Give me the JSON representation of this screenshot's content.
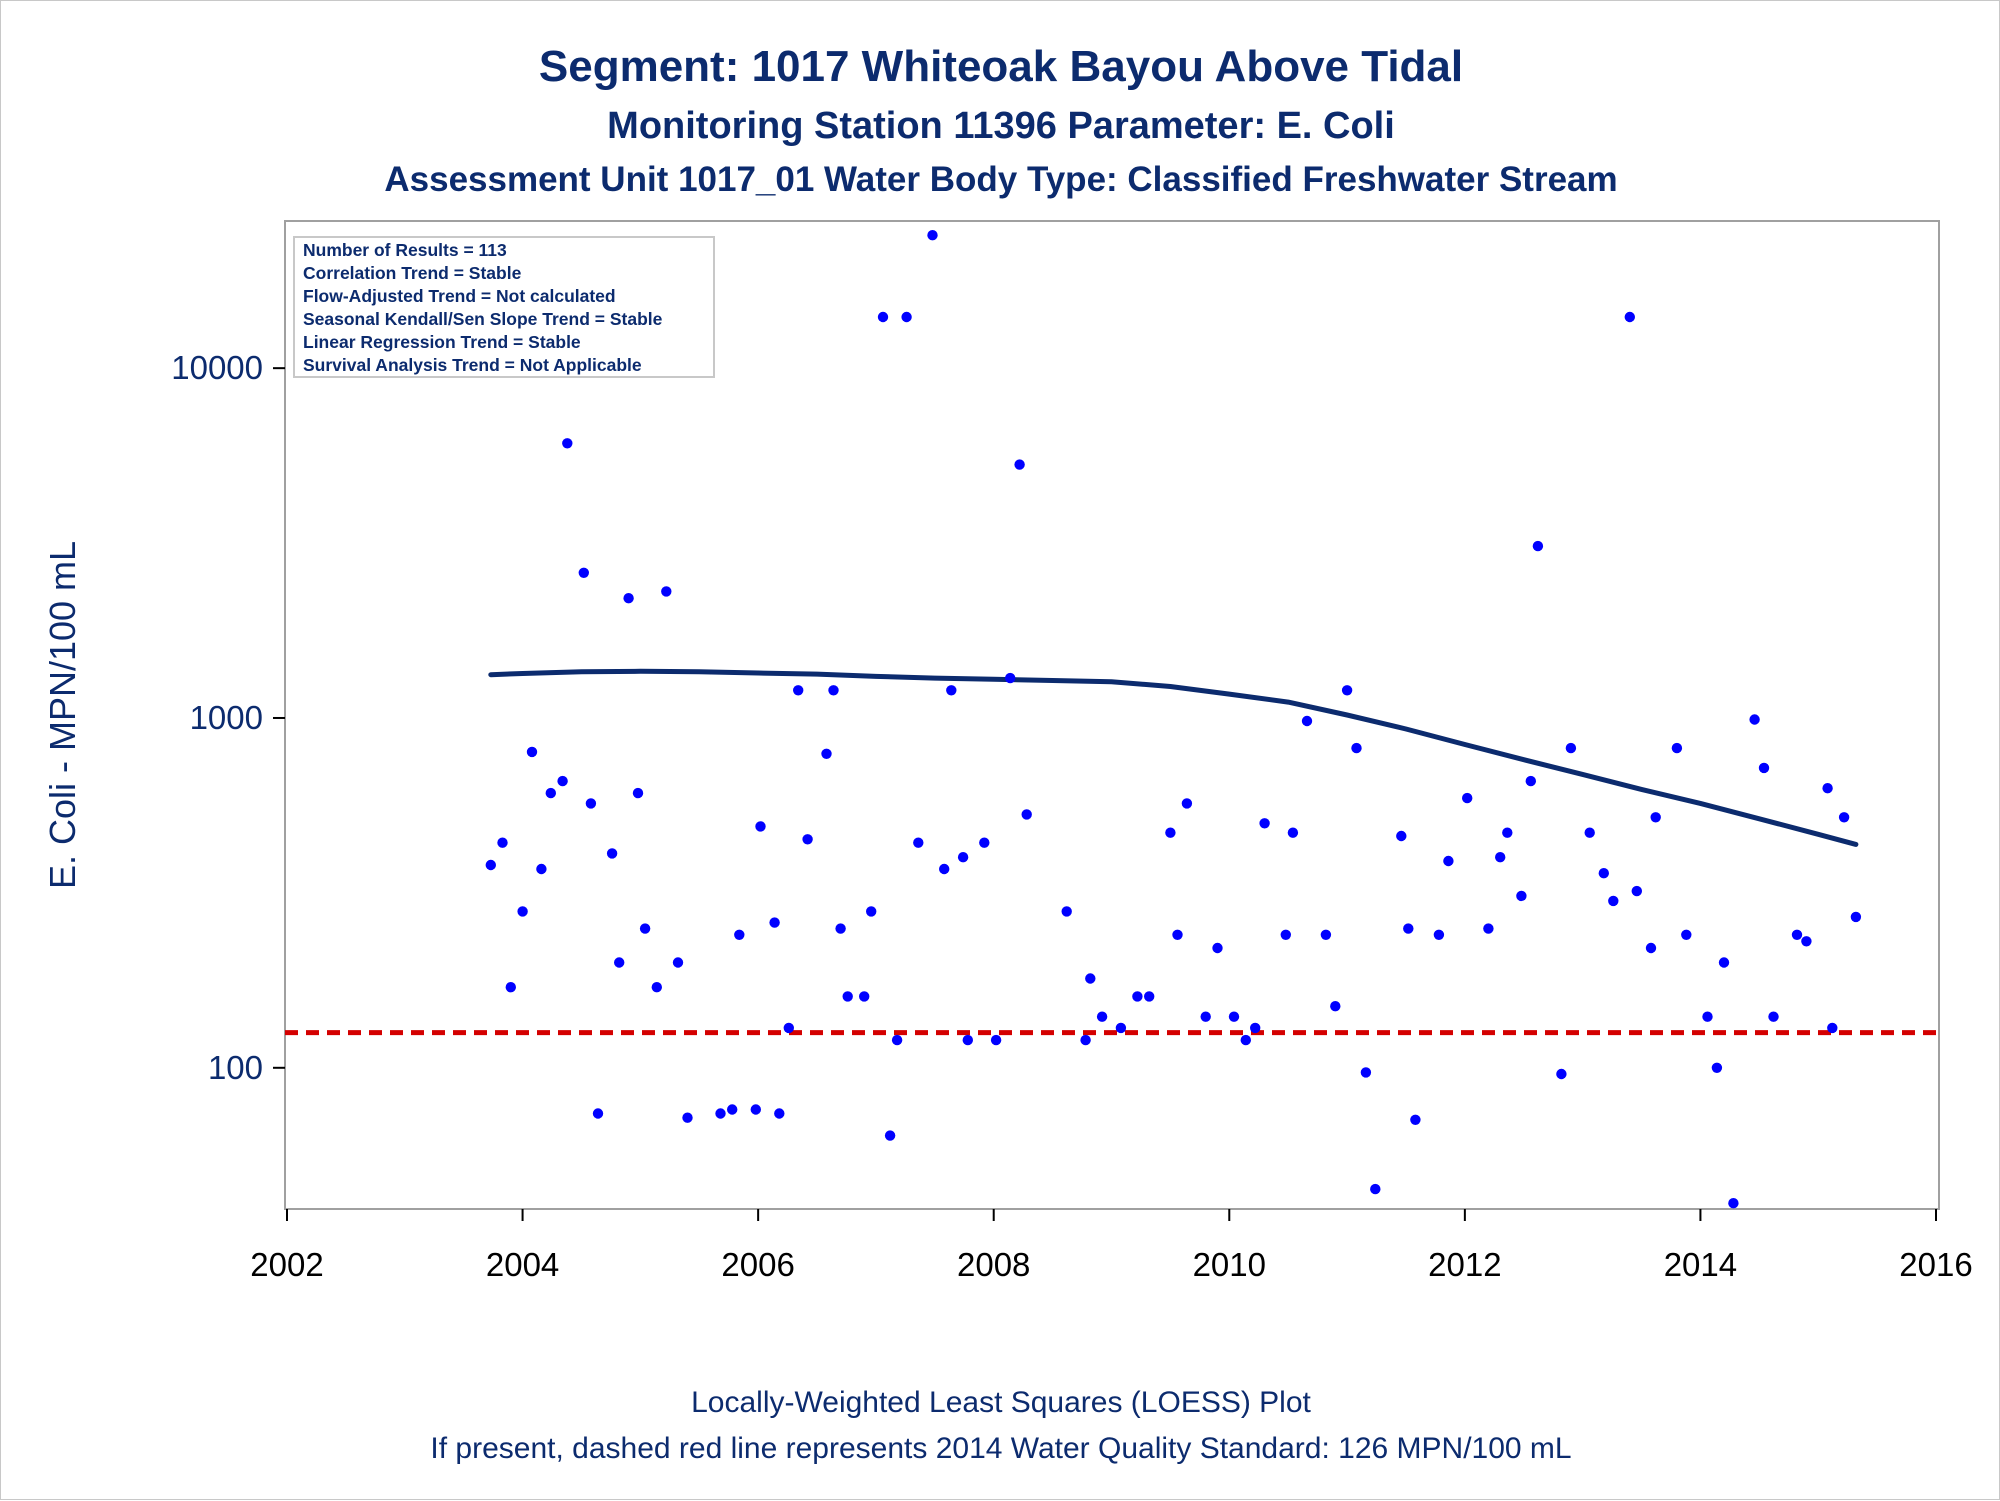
{
  "titles": {
    "line1": "Segment: 1017  Whiteoak Bayou Above Tidal",
    "line2": "Monitoring Station 11396 Parameter: E. Coli",
    "line3": "Assessment Unit 1017_01   Water Body Type: Classified Freshwater Stream"
  },
  "stats_box": [
    "Number of Results = 113",
    "Correlation Trend = Stable",
    "Flow-Adjusted Trend = Not calculated",
    "Seasonal Kendall/Sen Slope Trend = Stable",
    "Linear Regression Trend = Stable",
    "Survival Analysis Trend = Not Applicable"
  ],
  "footnotes": {
    "line1": "Locally-Weighted Least Squares (LOESS) Plot",
    "line2": "If present, dashed red line represents 2014 Water Quality Standard: 126 MPN/100 mL"
  },
  "colors": {
    "title": "#0c2b6e",
    "points": "#0000ff",
    "loess": "#0c2b6e",
    "standard_line": "#d40000",
    "axis_frame": "#a0a0a0"
  },
  "chart_data": {
    "type": "scatter",
    "ylabel": "E. Coli - MPN/100 mL",
    "xlabel": "",
    "yscale": "log",
    "xlim": [
      2002,
      2016
    ],
    "ylim": [
      40,
      26000
    ],
    "xticks": [
      2002,
      2004,
      2006,
      2008,
      2010,
      2012,
      2014,
      2016
    ],
    "yticks": [
      100,
      1000,
      10000
    ],
    "grid": false,
    "standard_line": {
      "value": 126,
      "style": "dashed",
      "color": "#d40000"
    },
    "points": [
      [
        2003.73,
        380
      ],
      [
        2003.83,
        440
      ],
      [
        2003.9,
        170
      ],
      [
        2004.0,
        280
      ],
      [
        2004.08,
        800
      ],
      [
        2004.16,
        370
      ],
      [
        2004.24,
        610
      ],
      [
        2004.34,
        660
      ],
      [
        2004.38,
        6100
      ],
      [
        2004.52,
        2600
      ],
      [
        2004.58,
        570
      ],
      [
        2004.64,
        74
      ],
      [
        2004.76,
        410
      ],
      [
        2004.82,
        200
      ],
      [
        2004.9,
        2200
      ],
      [
        2004.98,
        610
      ],
      [
        2005.04,
        250
      ],
      [
        2005.14,
        170
      ],
      [
        2005.22,
        2300
      ],
      [
        2005.32,
        200
      ],
      [
        2005.4,
        72
      ],
      [
        2005.68,
        74
      ],
      [
        2005.78,
        76
      ],
      [
        2005.84,
        240
      ],
      [
        2005.98,
        76
      ],
      [
        2006.02,
        490
      ],
      [
        2006.14,
        260
      ],
      [
        2006.18,
        74
      ],
      [
        2006.26,
        130
      ],
      [
        2006.34,
        1200
      ],
      [
        2006.42,
        450
      ],
      [
        2006.58,
        790
      ],
      [
        2006.64,
        1200
      ],
      [
        2006.7,
        250
      ],
      [
        2006.76,
        160
      ],
      [
        2006.9,
        160
      ],
      [
        2006.96,
        280
      ],
      [
        2007.06,
        14000
      ],
      [
        2007.12,
        64
      ],
      [
        2007.18,
        120
      ],
      [
        2007.26,
        14000
      ],
      [
        2007.36,
        440
      ],
      [
        2007.48,
        24000
      ],
      [
        2007.58,
        370
      ],
      [
        2007.64,
        1200
      ],
      [
        2007.74,
        400
      ],
      [
        2007.78,
        120
      ],
      [
        2007.92,
        440
      ],
      [
        2008.02,
        120
      ],
      [
        2008.14,
        1300
      ],
      [
        2008.22,
        5300
      ],
      [
        2008.28,
        530
      ],
      [
        2008.62,
        280
      ],
      [
        2008.78,
        120
      ],
      [
        2008.82,
        180
      ],
      [
        2008.92,
        140
      ],
      [
        2009.08,
        130
      ],
      [
        2009.22,
        160
      ],
      [
        2009.32,
        160
      ],
      [
        2009.5,
        470
      ],
      [
        2009.56,
        240
      ],
      [
        2009.64,
        570
      ],
      [
        2009.8,
        140
      ],
      [
        2009.9,
        220
      ],
      [
        2010.04,
        140
      ],
      [
        2010.14,
        120
      ],
      [
        2010.22,
        130
      ],
      [
        2010.3,
        500
      ],
      [
        2010.48,
        240
      ],
      [
        2010.54,
        470
      ],
      [
        2010.66,
        980
      ],
      [
        2010.82,
        240
      ],
      [
        2010.9,
        150
      ],
      [
        2011.0,
        1200
      ],
      [
        2011.08,
        820
      ],
      [
        2011.16,
        97
      ],
      [
        2011.24,
        45
      ],
      [
        2011.46,
        460
      ],
      [
        2011.52,
        250
      ],
      [
        2011.58,
        71
      ],
      [
        2011.78,
        240
      ],
      [
        2011.86,
        390
      ],
      [
        2012.02,
        590
      ],
      [
        2012.2,
        250
      ],
      [
        2012.3,
        400
      ],
      [
        2012.36,
        470
      ],
      [
        2012.48,
        310
      ],
      [
        2012.56,
        660
      ],
      [
        2012.62,
        3100
      ],
      [
        2012.82,
        96
      ],
      [
        2012.9,
        820
      ],
      [
        2013.06,
        470
      ],
      [
        2013.18,
        360
      ],
      [
        2013.26,
        300
      ],
      [
        2013.4,
        14000
      ],
      [
        2013.46,
        320
      ],
      [
        2013.58,
        220
      ],
      [
        2013.62,
        520
      ],
      [
        2013.8,
        820
      ],
      [
        2013.88,
        240
      ],
      [
        2014.06,
        140
      ],
      [
        2014.14,
        100
      ],
      [
        2014.2,
        200
      ],
      [
        2014.28,
        41
      ],
      [
        2014.46,
        990
      ],
      [
        2014.54,
        720
      ],
      [
        2014.62,
        140
      ],
      [
        2014.82,
        240
      ],
      [
        2014.9,
        230
      ],
      [
        2015.08,
        630
      ],
      [
        2015.12,
        130
      ],
      [
        2015.22,
        520
      ],
      [
        2015.32,
        270
      ]
    ],
    "series": [
      {
        "type": "line",
        "x": [
          2003.73,
          2004.0,
          2004.5,
          2005.0,
          2005.5,
          2006.0,
          2006.5,
          2007.0,
          2007.5,
          2008.0,
          2008.5,
          2009.0,
          2009.5,
          2010.0,
          2010.5,
          2011.0,
          2011.5,
          2012.0,
          2012.5,
          2013.0,
          2013.5,
          2014.0,
          2014.5,
          2015.0,
          2015.32
        ],
        "values": [
          1330,
          1340,
          1355,
          1360,
          1355,
          1345,
          1335,
          1315,
          1300,
          1290,
          1280,
          1270,
          1230,
          1170,
          1110,
          1020,
          930,
          840,
          760,
          690,
          625,
          570,
          515,
          465,
          435
        ]
      }
    ]
  }
}
